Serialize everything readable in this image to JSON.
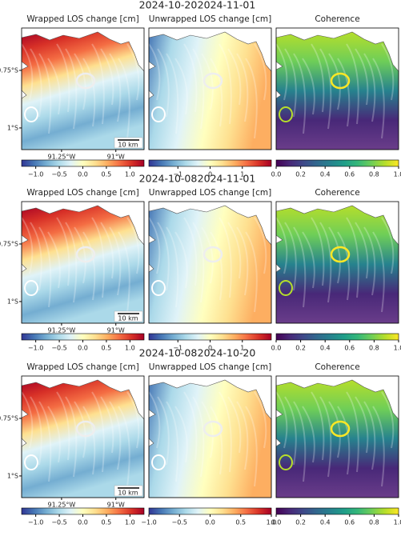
{
  "rows": [
    {
      "dates": [
        "2024-10-20",
        "2024-11-01"
      ]
    },
    {
      "dates": [
        "2024-10-08",
        "2024-11-01"
      ]
    },
    {
      "dates": [
        "2024-10-08",
        "2024-10-20"
      ]
    }
  ],
  "chart_data": [
    {
      "type": "map",
      "title": "Wrapped LOS change [cm]",
      "colormap": "RdYlBu_r",
      "clim": [
        -1.3,
        1.3
      ],
      "cticks": [
        {
          "value": -1,
          "label": "−1.0"
        },
        {
          "value": -0.5,
          "label": "−0.5"
        },
        {
          "value": 0,
          "label": "0.0"
        },
        0.5,
        {
          "value": 1,
          "label": "1.0"
        }
      ],
      "xlim": [
        -91.434,
        -90.87
      ],
      "ylim": [
        -1.094,
        -0.566
      ],
      "xticks": [
        {
          "value": -91.25,
          "label": "91.25°W"
        },
        {
          "value": -91,
          "label": "91°W"
        }
      ],
      "yticks": [
        {
          "value": -0.75,
          "label": "0.75°S"
        },
        {
          "value": -1,
          "label": "1°S"
        }
      ],
      "scalebar": "10 km"
    },
    {
      "type": "map",
      "title": "Unwrapped LOS change [cm]",
      "colormap": "RdYlBu_r",
      "clim": [
        -1.9,
        1.9
      ],
      "cticks": [
        {
          "value": -1,
          "label": "−1"
        },
        0,
        1
      ]
    },
    {
      "type": "map",
      "title": "Coherence",
      "colormap": "viridis",
      "clim": [
        0,
        1
      ],
      "cticks": [
        {
          "value": 0,
          "label": "0.0"
        },
        0.2,
        0.4,
        0.6,
        0.8,
        {
          "value": 1,
          "label": "1.0"
        }
      ]
    },
    {
      "type": "map",
      "title": "Wrapped LOS change [cm]",
      "colormap": "RdYlBu_r",
      "clim": [
        -1.3,
        1.3
      ],
      "cticks": [
        {
          "value": -1,
          "label": "−1.0"
        },
        {
          "value": -0.5,
          "label": "−0.5"
        },
        {
          "value": 0,
          "label": "0.0"
        },
        0.5,
        {
          "value": 1,
          "label": "1.0"
        }
      ],
      "xlim": [
        -91.434,
        -90.87
      ],
      "ylim": [
        -1.094,
        -0.566
      ],
      "xticks": [
        {
          "value": -91.25,
          "label": "91.25°W"
        },
        {
          "value": -91,
          "label": "91°W"
        }
      ],
      "yticks": [
        {
          "value": -0.75,
          "label": "0.75°S"
        },
        {
          "value": -1,
          "label": "1°S"
        }
      ],
      "scalebar": "10 km"
    },
    {
      "type": "map",
      "title": "Unwrapped LOS change [cm]",
      "colormap": "RdYlBu_r",
      "clim": [
        -1.9,
        1.9
      ],
      "cticks": [
        {
          "value": -1,
          "label": "−1"
        },
        0,
        1
      ]
    },
    {
      "type": "map",
      "title": "Coherence",
      "colormap": "viridis",
      "clim": [
        0,
        1
      ],
      "cticks": [
        {
          "value": 0,
          "label": "0.0"
        },
        0.2,
        0.4,
        0.6,
        0.8,
        {
          "value": 1,
          "label": "1.0"
        }
      ]
    },
    {
      "type": "map",
      "title": "Wrapped LOS change [cm]",
      "colormap": "RdYlBu_r",
      "clim": [
        -1.3,
        1.3
      ],
      "cticks": [
        {
          "value": -1,
          "label": "−1.0"
        },
        {
          "value": -0.5,
          "label": "−0.5"
        },
        {
          "value": 0,
          "label": "0.0"
        },
        0.5,
        {
          "value": 1,
          "label": "1.0"
        }
      ],
      "xlim": [
        -91.434,
        -90.87
      ],
      "ylim": [
        -1.094,
        -0.566
      ],
      "xticks": [
        {
          "value": -91.25,
          "label": "91.25°W"
        },
        {
          "value": -91,
          "label": "91°W"
        }
      ],
      "yticks": [
        {
          "value": -0.75,
          "label": "0.75°S"
        },
        {
          "value": -1,
          "label": "1°S"
        }
      ],
      "scalebar": "10 km"
    },
    {
      "type": "map",
      "title": "Unwrapped LOS change [cm]",
      "colormap": "RdYlBu_r",
      "clim": [
        -1,
        1
      ],
      "cticks": [
        {
          "value": -1,
          "label": "−1.0"
        },
        {
          "value": -0.5,
          "label": "−0.5"
        },
        {
          "value": 0,
          "label": "0.0"
        },
        0.5,
        {
          "value": 1,
          "label": "1.0"
        }
      ]
    },
    {
      "type": "map",
      "title": "Coherence",
      "colormap": "viridis",
      "clim": [
        0,
        1
      ],
      "cticks": [
        {
          "value": 0,
          "label": "0.0"
        },
        0.2,
        0.4,
        0.6,
        0.8,
        {
          "value": 1,
          "label": "1.0"
        }
      ]
    }
  ]
}
